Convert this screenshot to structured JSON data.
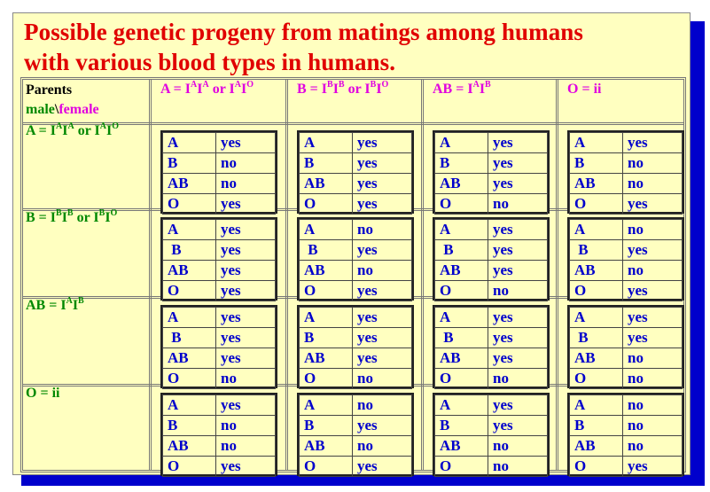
{
  "title_line1": "Possible genetic progeny from matings among humans",
  "title_line2": "with  various blood types in humans.",
  "corner": {
    "line1": "Parents",
    "male": "male",
    "sep": "\\",
    "female": "female"
  },
  "col_headers": [
    {
      "pre": "A = I",
      "s1": "A",
      "mid": "I",
      "s2": "A",
      "or": " or I",
      "s3": "A",
      "mid2": "I",
      "s4": "O"
    },
    {
      "pre": "B = I",
      "s1": "B",
      "mid": "I",
      "s2": "B",
      "or": " or I",
      "s3": "B",
      "mid2": "I",
      "s4": "O"
    },
    {
      "pre": "AB = I",
      "s1": "A",
      "mid": "I",
      "s2": "B",
      "or": "",
      "s3": "",
      "mid2": "",
      "s4": ""
    },
    {
      "pre": "O = ii",
      "s1": "",
      "mid": "",
      "s2": "",
      "or": "",
      "s3": "",
      "mid2": "",
      "s4": ""
    }
  ],
  "row_headers": [
    {
      "pre": "A = I",
      "s1": "A",
      "mid": "I",
      "s2": "A",
      "or": " or I",
      "s3": "A",
      "mid2": "I",
      "s4": "O"
    },
    {
      "pre": "B = I",
      "s1": "B",
      "mid": "I",
      "s2": "B",
      "or": " or I",
      "s3": "B",
      "mid2": "I",
      "s4": "O"
    },
    {
      "pre": "AB = I",
      "s1": "A",
      "mid": "I",
      "s2": "B",
      "or": "",
      "s3": "",
      "mid2": "",
      "s4": ""
    },
    {
      "pre": "O = ii",
      "s1": "",
      "mid": "",
      "s2": "",
      "or": "",
      "s3": "",
      "mid2": "",
      "s4": ""
    }
  ],
  "types": [
    "A",
    "B",
    "AB",
    "O"
  ],
  "types_row_b": [
    "A",
    " B",
    "AB",
    "O"
  ],
  "grid": [
    [
      [
        "yes",
        "no",
        "no",
        "yes"
      ],
      [
        "yes",
        "yes",
        "yes",
        "yes"
      ],
      [
        "yes",
        "yes",
        "yes",
        "no"
      ],
      [
        "yes",
        "no",
        "no",
        "yes"
      ]
    ],
    [
      [
        "yes",
        "yes",
        "yes",
        "yes"
      ],
      [
        "no",
        "yes",
        "no",
        "yes"
      ],
      [
        "yes",
        "yes",
        "yes",
        "no"
      ],
      [
        "no",
        "yes",
        "no",
        "yes"
      ]
    ],
    [
      [
        "yes",
        "yes",
        "yes",
        "no"
      ],
      [
        "yes",
        "yes",
        "yes",
        "no"
      ],
      [
        "yes",
        "yes",
        "yes",
        "no"
      ],
      [
        "yes",
        "yes",
        "no",
        "no"
      ]
    ],
    [
      [
        "yes",
        "no",
        "no",
        "yes"
      ],
      [
        "no",
        "yes",
        "no",
        "yes"
      ],
      [
        "yes",
        "yes",
        "no",
        "no"
      ],
      [
        "no",
        "no",
        "no",
        "yes"
      ]
    ]
  ]
}
